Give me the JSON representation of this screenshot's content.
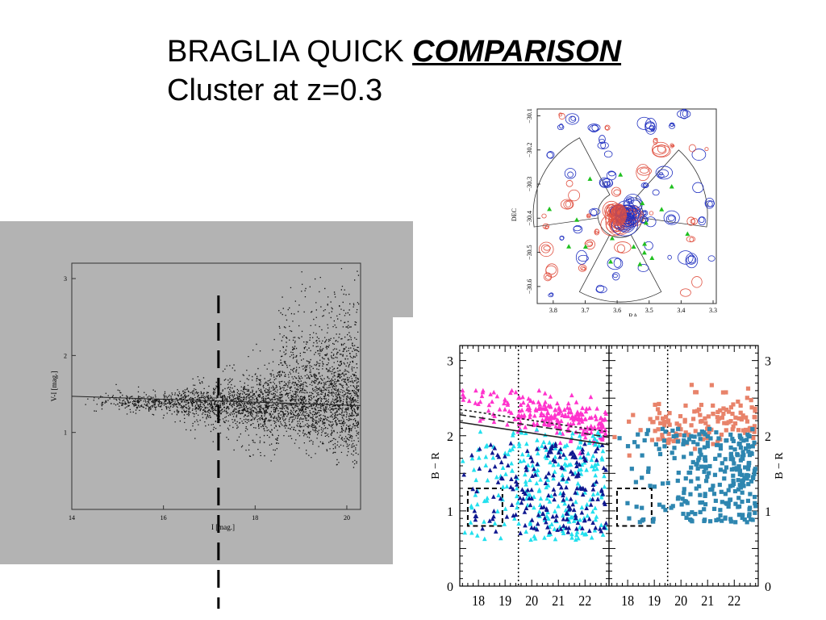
{
  "slide": {
    "title_prefix": "BRAGLIA QUICK ",
    "title_emphasis": "COMPARISON",
    "subtitle": "Cluster at z=0.3"
  },
  "colors": {
    "gray_background": "#b3b3b3",
    "contour_red": "#e05040",
    "contour_blue": "#2030c0",
    "green_triangle": "#20c020",
    "magenta": "#ff33cc",
    "cyan": "#22e0ee",
    "navy": "#101890",
    "salmon": "#e8836a",
    "steelblue": "#2e86b0"
  },
  "chart_data": [
    {
      "id": "cmd-left",
      "type": "scatter",
      "xlabel": "I [mag.]",
      "ylabel": "V-I [mag.]",
      "xlim": [
        14,
        20.3
      ],
      "ylim": [
        0.0,
        3.2
      ],
      "xticks": [
        14,
        16,
        18,
        20
      ],
      "yticks": [
        1,
        2,
        3
      ],
      "red_sequence_line": {
        "x": [
          14,
          20.3
        ],
        "y": [
          1.47,
          1.35
        ]
      },
      "vertical_dashed_cut_x": 17.2,
      "note_points": "dense cloud of ~6000 galaxies, red sequence near V-I 1.4"
    },
    {
      "id": "sky-map",
      "type": "scatter",
      "xlabel": "RA",
      "ylabel": "DEC",
      "xlim": [
        3.85,
        3.29
      ],
      "ylim": [
        -30.65,
        -30.08
      ],
      "xticks": [
        3.8,
        3.7,
        3.6,
        3.5,
        3.4,
        3.3
      ],
      "xtick_labels": [
        "3.8",
        "3.7",
        "3.6",
        "3.5",
        "3.4",
        "3.3"
      ],
      "yticks": [
        -30.1,
        -30.2,
        -30.3,
        -30.4,
        -30.5,
        -30.6
      ],
      "ytick_labels": [
        "−30.1",
        "−30.2",
        "−30.3",
        "−30.4",
        "−30.5",
        "−30.6"
      ],
      "center": {
        "ra": 3.59,
        "dec": -30.39
      }
    },
    {
      "id": "cmd-right-left",
      "type": "scatter",
      "ylabel": "B − R",
      "xlim": [
        17.3,
        22.9
      ],
      "ylim": [
        0,
        3.2
      ],
      "xticks": [
        18,
        19,
        20,
        21,
        22
      ],
      "yticks": [
        0,
        1,
        2,
        3
      ],
      "dotted_cut_x": 19.5,
      "box": {
        "x": [
          17.6,
          18.9
        ],
        "y": [
          0.8,
          1.3
        ]
      },
      "series": [
        {
          "color": "#ff33cc",
          "region": "red sequence 1.9–2.6"
        },
        {
          "color": "#22e0ee",
          "region": "blue 0.5–2.0"
        },
        {
          "color": "#101890",
          "region": "blue 0.6–1.9"
        }
      ]
    },
    {
      "id": "cmd-right-right",
      "type": "scatter",
      "ylabel": "B − R",
      "xlim": [
        17.3,
        22.9
      ],
      "ylim": [
        0,
        3.2
      ],
      "xticks": [
        18,
        19,
        20,
        21,
        22
      ],
      "yticks": [
        0,
        1,
        2,
        3
      ],
      "dotted_cut_x": 19.5,
      "box": {
        "x": [
          17.6,
          18.9
        ],
        "y": [
          0.8,
          1.3
        ]
      },
      "series": [
        {
          "color": "#e8836a",
          "region": "red 1.9–2.7"
        },
        {
          "color": "#2e86b0",
          "region": "blue 0.8–2.1"
        }
      ]
    }
  ]
}
